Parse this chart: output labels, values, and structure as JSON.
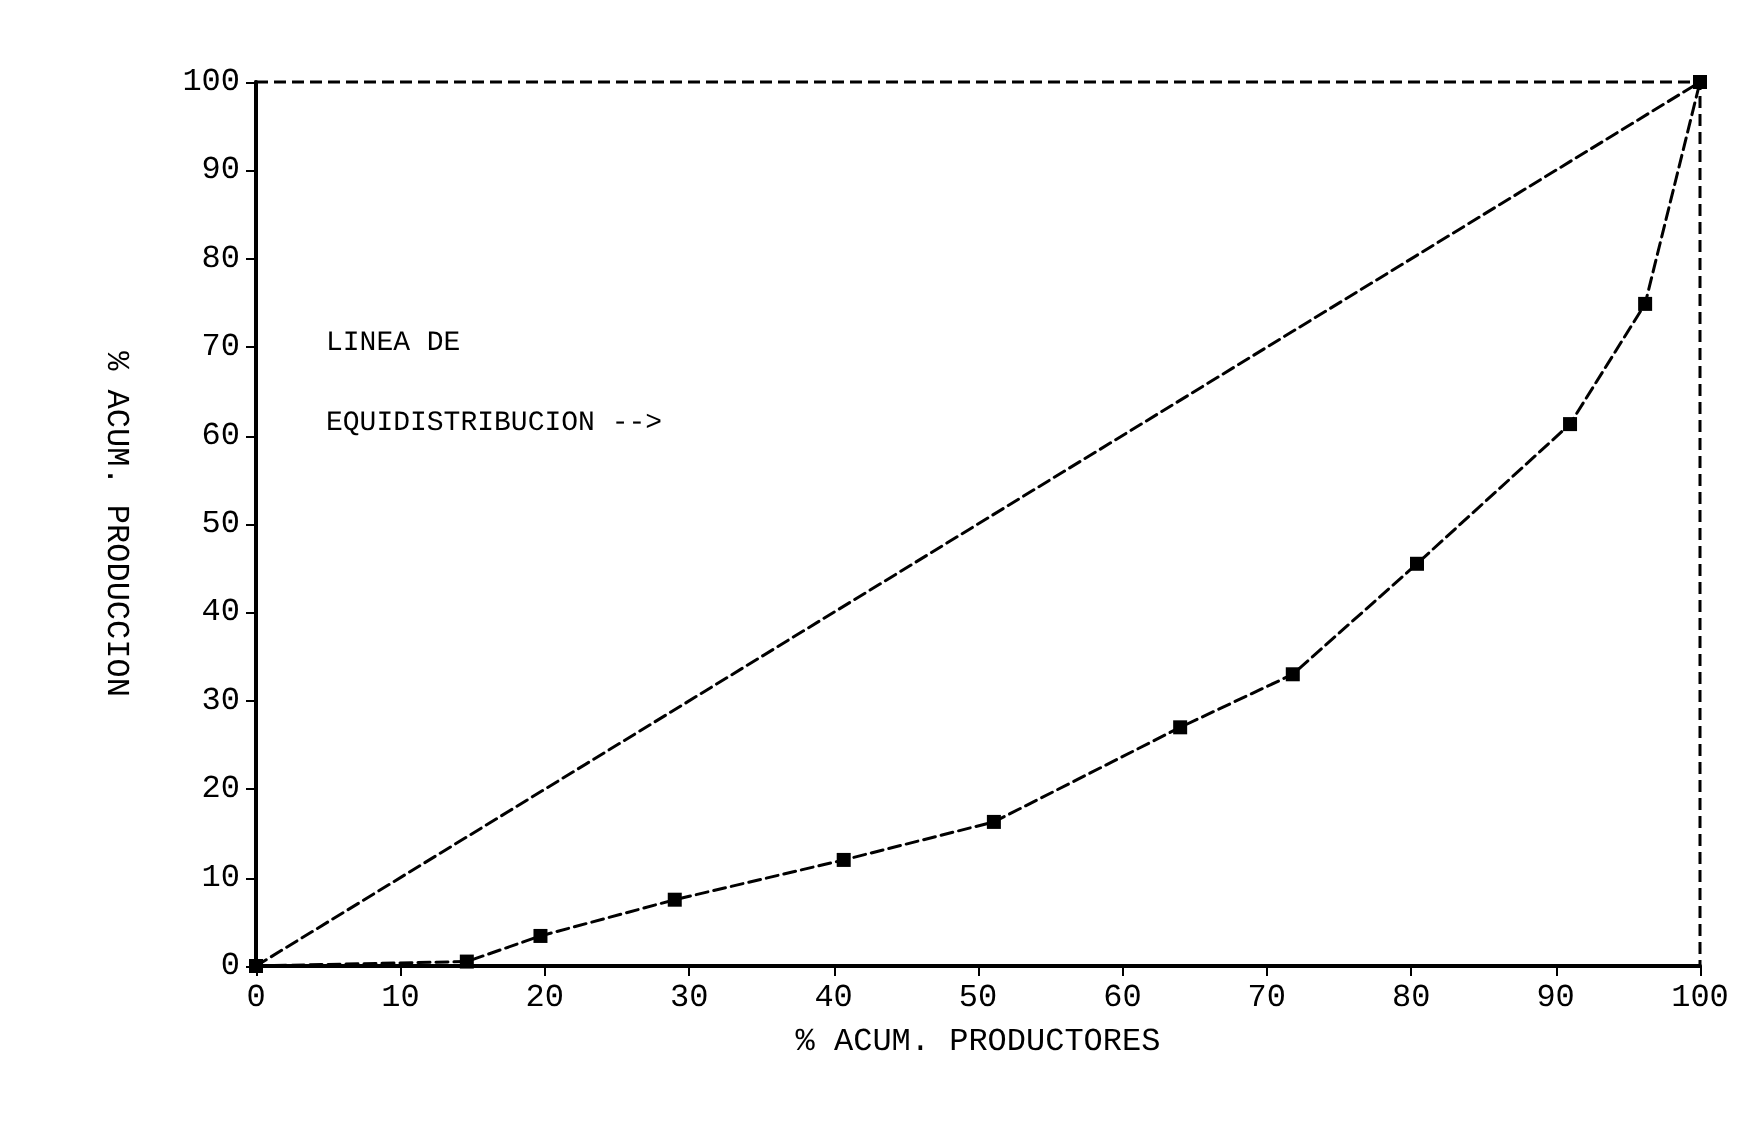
{
  "chart_data": {
    "type": "line",
    "xlabel": "% ACUM. PRODUCTORES",
    "ylabel": "% ACUM. PRODUCCION",
    "annotations": [
      "LINEA DE",
      "EQUIDISTRIBUCION -->"
    ],
    "xlim": [
      0,
      100
    ],
    "ylim": [
      0,
      100
    ],
    "xticks": [
      0,
      10,
      20,
      30,
      40,
      50,
      60,
      70,
      80,
      90,
      100
    ],
    "yticks": [
      0,
      10,
      20,
      30,
      40,
      50,
      60,
      70,
      80,
      90,
      100
    ],
    "grid": false,
    "series": [
      {
        "color": "#000000",
        "x": [
          0,
          100
        ],
        "values": [
          0,
          100
        ],
        "marker": "square",
        "line_style": "dashed"
      },
      {
        "color": "#000000",
        "x": [
          0,
          14.6,
          19.7,
          29,
          40.7,
          51.1,
          64,
          71.8,
          80.4,
          91,
          96.2,
          100
        ],
        "values": [
          0,
          0.5,
          3.4,
          7.5,
          12,
          16.3,
          27,
          33,
          45.5,
          61.3,
          74.9,
          100
        ],
        "marker": "square",
        "line_style": "dashed"
      }
    ]
  }
}
